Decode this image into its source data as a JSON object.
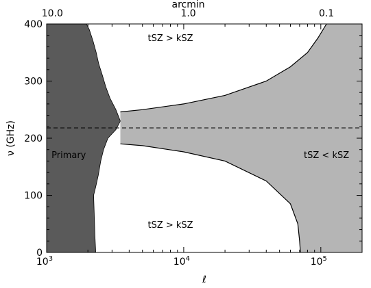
{
  "chart_data": {
    "type": "area",
    "xlabel": "ℓ",
    "ylabel": "ν (GHz)",
    "top_xlabel": "arcmin",
    "xscale": "log",
    "xlim": [
      1000,
      200000
    ],
    "ylim": [
      0,
      400
    ],
    "grid": false,
    "legend": "none",
    "x_ticks": [
      {
        "value": 1000,
        "base": "10",
        "exp": "3"
      },
      {
        "value": 10000,
        "base": "10",
        "exp": "4"
      },
      {
        "value": 100000,
        "base": "10",
        "exp": "5"
      }
    ],
    "y_ticks": [
      {
        "value": 0,
        "label": "0"
      },
      {
        "value": 100,
        "label": "100"
      },
      {
        "value": 200,
        "label": "200"
      },
      {
        "value": 300,
        "label": "300"
      },
      {
        "value": 400,
        "label": "400"
      }
    ],
    "top_ticks": [
      {
        "ell": 1100,
        "label": "10.0"
      },
      {
        "ell": 10800,
        "label": "1.0"
      },
      {
        "ell": 110000,
        "label": "0.1"
      }
    ],
    "tsz_null_ghz": 218,
    "regions": [
      {
        "name": "Primary",
        "color": "#5a5a5a",
        "left_edge": [
          [
            1000,
            0
          ],
          [
            1000,
            400
          ]
        ],
        "right_edge": [
          [
            2280,
            0
          ],
          [
            2270,
            10
          ],
          [
            2250,
            30
          ],
          [
            2230,
            60
          ],
          [
            2200,
            100
          ],
          [
            2280,
            115
          ],
          [
            2380,
            135
          ],
          [
            2480,
            160
          ],
          [
            2600,
            180
          ],
          [
            2800,
            200
          ],
          [
            3200,
            215
          ],
          [
            3450,
            230
          ],
          [
            3200,
            250
          ],
          [
            2900,
            270
          ],
          [
            2700,
            290
          ],
          [
            2550,
            310
          ],
          [
            2400,
            330
          ],
          [
            2300,
            350
          ],
          [
            2180,
            370
          ],
          [
            2050,
            390
          ],
          [
            1950,
            400
          ]
        ]
      },
      {
        "name": "tSZ < kSZ",
        "color": "#b5b5b5",
        "upper_edge": [
          [
            3450,
            246
          ],
          [
            5000,
            250
          ],
          [
            10000,
            260
          ],
          [
            20000,
            275
          ],
          [
            40000,
            300
          ],
          [
            60000,
            325
          ],
          [
            80000,
            350
          ],
          [
            95000,
            375
          ],
          [
            110000,
            400
          ]
        ],
        "lower_edge": [
          [
            3450,
            190
          ],
          [
            5000,
            187
          ],
          [
            10000,
            176
          ],
          [
            20000,
            160
          ],
          [
            40000,
            125
          ],
          [
            60000,
            85
          ],
          [
            68000,
            50
          ],
          [
            70000,
            20
          ],
          [
            71000,
            0
          ]
        ]
      }
    ],
    "annotations": [
      {
        "text": "tSZ > kSZ",
        "ell": 8000,
        "nu": 375
      },
      {
        "text": "tSZ > kSZ",
        "ell": 8000,
        "nu": 48
      },
      {
        "text": "Primary",
        "ell": 1450,
        "nu": 170
      },
      {
        "text": "tSZ < kSZ",
        "ell": 110000,
        "nu": 170
      }
    ]
  }
}
